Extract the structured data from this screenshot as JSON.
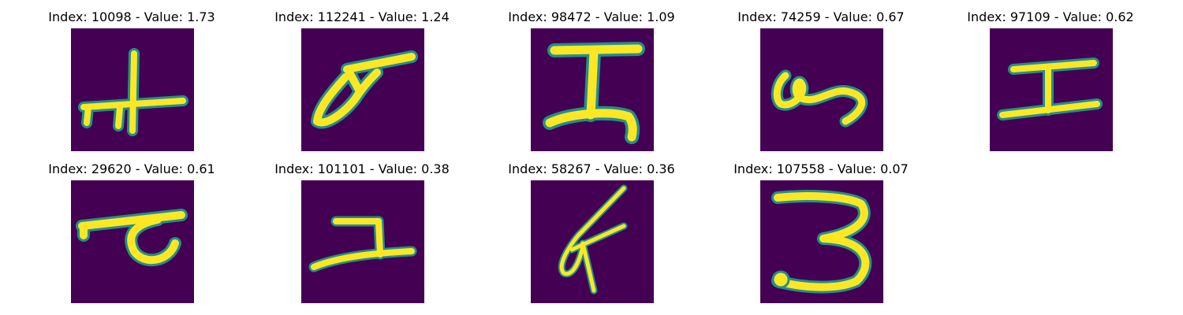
{
  "figure": {
    "background": "#ffffff",
    "colormap": "viridis",
    "image_background_color": "#440154",
    "stroke_color_core": "#fde725",
    "stroke_color_edge": "#21908d"
  },
  "panels": [
    {
      "title": "Index: 10098 - Value: 1.73",
      "index": 10098,
      "value": 1.73
    },
    {
      "title": "Index: 112241 - Value: 1.24",
      "index": 112241,
      "value": 1.24
    },
    {
      "title": "Index: 98472 - Value: 1.09",
      "index": 98472,
      "value": 1.09
    },
    {
      "title": "Index: 74259 - Value: 0.67",
      "index": 74259,
      "value": 0.67
    },
    {
      "title": "Index: 97109 - Value: 0.62",
      "index": 97109,
      "value": 0.62
    },
    {
      "title": "Index: 29620 - Value: 0.61",
      "index": 29620,
      "value": 0.61
    },
    {
      "title": "Index: 101101 - Value: 0.38",
      "index": 101101,
      "value": 0.38
    },
    {
      "title": "Index: 58267 - Value: 0.36",
      "index": 58267,
      "value": 0.36
    },
    {
      "title": "Index: 107558 - Value: 0.07",
      "index": 107558,
      "value": 0.07
    }
  ]
}
